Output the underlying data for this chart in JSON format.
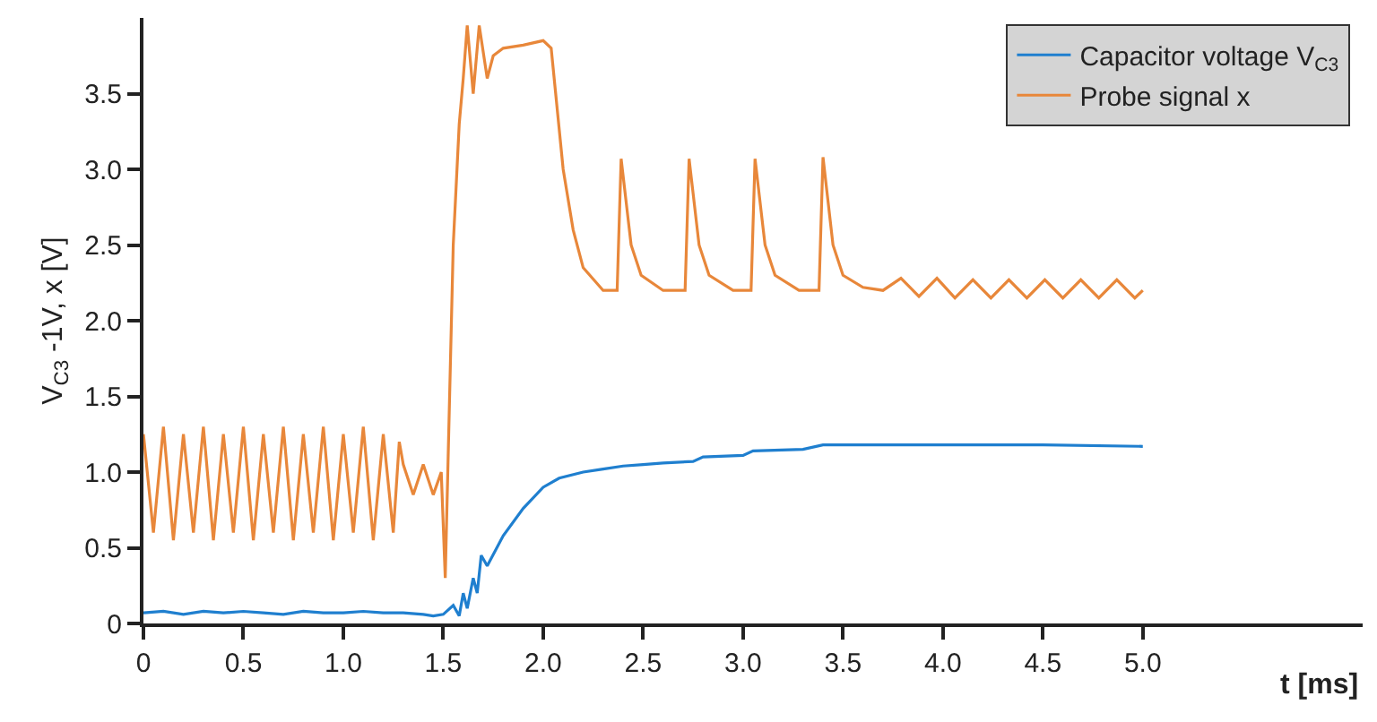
{
  "chart_data": {
    "type": "line",
    "xlabel": "t [ms]",
    "ylabel": "V$_{C3}$ -1V, x [V]",
    "xlim": [
      0,
      6.1
    ],
    "ylim": [
      0,
      4.0
    ],
    "xticks": [
      0,
      0.5,
      {
        "value": 1,
        "label": "1.0"
      },
      1.5,
      {
        "value": 2,
        "label": "2.0"
      },
      2.5,
      {
        "value": 3,
        "label": "3.0"
      },
      3.5,
      {
        "value": 4,
        "label": "4.0"
      },
      4.5,
      {
        "value": 5,
        "label": "5.0"
      }
    ],
    "yticks": [
      0,
      0.5,
      {
        "value": 1,
        "label": "1.0"
      },
      1.5,
      {
        "value": 2,
        "label": "2.0"
      },
      2.5,
      {
        "value": 3,
        "label": "3.0"
      },
      3.5
    ],
    "legend": "top right",
    "marker": "none",
    "line_style": "solid",
    "series": [
      {
        "name": "Capacitor voltage V$_{C3}$",
        "color": "#1f7fcf",
        "x": [
          0,
          0.1,
          0.2,
          0.3,
          0.4,
          0.5,
          0.6,
          0.7,
          0.8,
          0.9,
          1.0,
          1.1,
          1.2,
          1.3,
          1.4,
          1.45,
          1.5,
          1.55,
          1.58,
          1.6,
          1.62,
          1.65,
          1.67,
          1.69,
          1.72,
          1.8,
          1.9,
          2.0,
          2.08,
          2.2,
          2.3,
          2.4,
          2.5,
          2.6,
          2.75,
          2.8,
          3.0,
          3.05,
          3.3,
          3.4,
          3.6,
          4.0,
          4.5,
          5.0
        ],
        "values": [
          0.07,
          0.08,
          0.06,
          0.08,
          0.07,
          0.08,
          0.07,
          0.06,
          0.08,
          0.07,
          0.07,
          0.08,
          0.07,
          0.07,
          0.06,
          0.05,
          0.06,
          0.12,
          0.05,
          0.2,
          0.1,
          0.3,
          0.2,
          0.45,
          0.38,
          0.58,
          0.76,
          0.9,
          0.96,
          1.0,
          1.02,
          1.04,
          1.05,
          1.06,
          1.07,
          1.1,
          1.11,
          1.14,
          1.15,
          1.18,
          1.18,
          1.18,
          1.18,
          1.17
        ]
      },
      {
        "name": "Probe signal x",
        "color": "#e8873a",
        "x": [
          0,
          0.05,
          0.1,
          0.15,
          0.2,
          0.25,
          0.3,
          0.35,
          0.4,
          0.45,
          0.5,
          0.55,
          0.6,
          0.65,
          0.7,
          0.75,
          0.8,
          0.85,
          0.9,
          0.95,
          1.0,
          1.05,
          1.1,
          1.15,
          1.2,
          1.25,
          1.28,
          1.3,
          1.35,
          1.4,
          1.45,
          1.49,
          1.51,
          1.55,
          1.58,
          1.6,
          1.62,
          1.65,
          1.68,
          1.72,
          1.75,
          1.8,
          1.9,
          2.0,
          2.04,
          2.1,
          2.15,
          2.2,
          2.3,
          2.37,
          2.39,
          2.44,
          2.49,
          2.6,
          2.71,
          2.73,
          2.78,
          2.83,
          2.95,
          3.04,
          3.06,
          3.11,
          3.16,
          3.28,
          3.38,
          3.4,
          3.45,
          3.5,
          3.6,
          3.7,
          3.79,
          3.88,
          3.97,
          4.06,
          4.15,
          4.24,
          4.33,
          4.42,
          4.51,
          4.6,
          4.69,
          4.78,
          4.87,
          4.96,
          5.0
        ],
        "values": [
          1.25,
          0.6,
          1.3,
          0.55,
          1.25,
          0.6,
          1.3,
          0.55,
          1.25,
          0.6,
          1.3,
          0.55,
          1.25,
          0.6,
          1.3,
          0.55,
          1.25,
          0.6,
          1.3,
          0.55,
          1.25,
          0.6,
          1.3,
          0.55,
          1.25,
          0.6,
          1.2,
          1.05,
          0.85,
          1.05,
          0.85,
          1.0,
          0.3,
          2.5,
          3.3,
          3.6,
          3.95,
          3.5,
          3.95,
          3.6,
          3.75,
          3.8,
          3.82,
          3.85,
          3.8,
          3.0,
          2.6,
          2.35,
          2.2,
          2.2,
          3.07,
          2.5,
          2.3,
          2.2,
          2.2,
          3.07,
          2.5,
          2.3,
          2.2,
          2.2,
          3.07,
          2.5,
          2.3,
          2.2,
          2.2,
          3.08,
          2.5,
          2.3,
          2.22,
          2.2,
          2.28,
          2.16,
          2.28,
          2.15,
          2.27,
          2.15,
          2.27,
          2.15,
          2.27,
          2.15,
          2.27,
          2.15,
          2.27,
          2.15,
          2.2
        ]
      }
    ]
  }
}
